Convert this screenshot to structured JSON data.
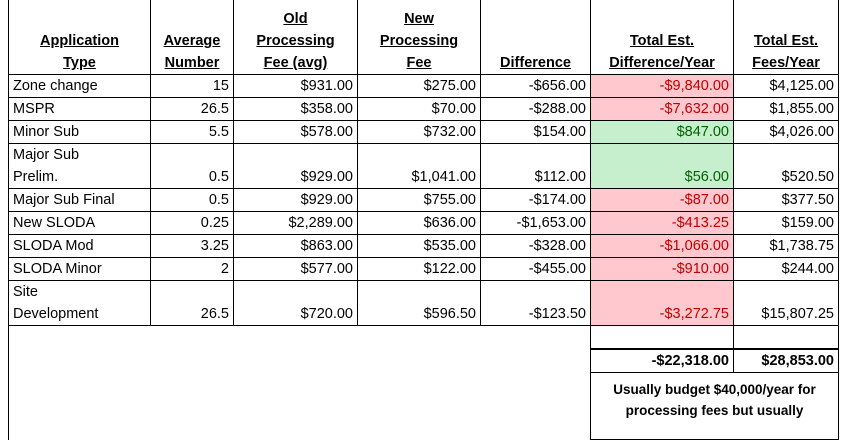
{
  "table": {
    "header": [
      [
        "Application",
        "Type"
      ],
      [
        "Average",
        "Number"
      ],
      [
        "Old",
        "Processing",
        "Fee (avg)"
      ],
      [
        "New",
        "Processing",
        "Fee"
      ],
      [
        "Difference"
      ],
      [
        "Total Est.",
        "Difference/Year"
      ],
      [
        "Total Est.",
        "Fees/Year"
      ]
    ],
    "rows": [
      {
        "cells": [
          "Zone change",
          "15",
          "$931.00",
          "$275.00",
          "-$656.00",
          "-$9,840.00",
          "$4,125.00"
        ],
        "highlight": "red"
      },
      {
        "cells": [
          "MSPR",
          "26.5",
          "$358.00",
          "$70.00",
          "-$288.00",
          "-$7,632.00",
          "$1,855.00"
        ],
        "highlight": "red"
      },
      {
        "cells": [
          "Minor Sub",
          "5.5",
          "$578.00",
          "$732.00",
          "$154.00",
          "$847.00",
          "$4,026.00"
        ],
        "highlight": "green"
      },
      {
        "cells": [
          [
            "Major Sub",
            "Prelim."
          ],
          "0.5",
          "$929.00",
          "$1,041.00",
          "$112.00",
          "$56.00",
          "$520.50"
        ],
        "highlight": "green"
      },
      {
        "cells": [
          "Major Sub Final",
          "0.5",
          "$929.00",
          "$755.00",
          "-$174.00",
          "-$87.00",
          "$377.50"
        ],
        "highlight": "red"
      },
      {
        "cells": [
          "New SLODA",
          "0.25",
          "$2,289.00",
          "$636.00",
          "-$1,653.00",
          "-$413.25",
          "$159.00"
        ],
        "highlight": "red"
      },
      {
        "cells": [
          "SLODA Mod",
          "3.25",
          "$863.00",
          "$535.00",
          "-$328.00",
          "-$1,066.00",
          "$1,738.75"
        ],
        "highlight": "red"
      },
      {
        "cells": [
          "SLODA Minor",
          "2",
          "$577.00",
          "$122.00",
          "-$455.00",
          "-$910.00",
          "$244.00"
        ],
        "highlight": "red"
      },
      {
        "cells": [
          [
            "Site",
            "Development"
          ],
          "26.5",
          "$720.00",
          "$596.50",
          "-$123.50",
          "-$3,272.75",
          "$15,807.25"
        ],
        "highlight": "red"
      }
    ],
    "totals": [
      "-$22,318.00",
      "$28,853.00"
    ],
    "note": [
      "Usually budget $40,000/year for",
      "processing fees but usually"
    ]
  }
}
